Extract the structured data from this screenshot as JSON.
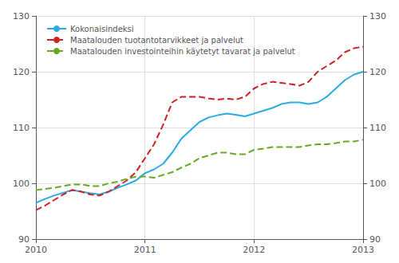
{
  "chart_data": {
    "type": "line",
    "categories": [
      "2010",
      null,
      null,
      null,
      null,
      null,
      null,
      null,
      null,
      null,
      null,
      null,
      "2011",
      null,
      null,
      null,
      null,
      null,
      null,
      null,
      null,
      null,
      null,
      null,
      "2012",
      null,
      null,
      null,
      null,
      null,
      null,
      null,
      null,
      null,
      null,
      null,
      "2013"
    ],
    "series": [
      {
        "name": "Kokonaisindeksi",
        "color": "#29abe2",
        "line_style": "solid",
        "values": [
          96.5,
          97.2,
          97.8,
          98.3,
          98.8,
          98.5,
          98.2,
          98.0,
          98.5,
          99.2,
          99.8,
          100.5,
          101.8,
          102.5,
          103.5,
          105.5,
          108.0,
          109.5,
          111.0,
          111.8,
          112.2,
          112.5,
          112.3,
          112.0,
          112.5,
          113.0,
          113.5,
          114.2,
          114.5,
          114.5,
          114.2,
          114.5,
          115.5,
          117.0,
          118.5,
          119.5,
          120.0
        ]
      },
      {
        "name": "Maatalouden tuotantotarvikkeet ja palvelut",
        "color": "#cc2222",
        "line_style": "dashed",
        "values": [
          95.2,
          96.0,
          97.0,
          98.0,
          98.8,
          98.5,
          98.0,
          97.8,
          98.5,
          99.5,
          100.5,
          102.0,
          104.5,
          107.0,
          110.5,
          114.5,
          115.5,
          115.5,
          115.5,
          115.2,
          115.0,
          115.2,
          115.0,
          115.5,
          117.0,
          117.8,
          118.2,
          118.0,
          117.8,
          117.5,
          118.2,
          120.0,
          121.0,
          122.0,
          123.5,
          124.2,
          124.5
        ]
      },
      {
        "name": "Maatalouden investointeihin käytetyt tavarat ja palvelut",
        "color": "#66aa22",
        "line_style": "dashed",
        "values": [
          98.8,
          99.0,
          99.2,
          99.5,
          99.8,
          99.8,
          99.5,
          99.5,
          100.0,
          100.3,
          100.8,
          101.2,
          101.2,
          101.0,
          101.5,
          102.0,
          102.8,
          103.5,
          104.5,
          105.0,
          105.5,
          105.5,
          105.2,
          105.2,
          106.0,
          106.2,
          106.5,
          106.5,
          106.5,
          106.5,
          106.8,
          107.0,
          107.0,
          107.2,
          107.5,
          107.5,
          107.8
        ]
      }
    ],
    "ylim": [
      90,
      130
    ],
    "yticks": [
      90,
      100,
      110,
      120,
      130
    ],
    "y2lim": [
      90,
      130
    ],
    "y2ticks": [
      90,
      100,
      110,
      120,
      130
    ],
    "grid": true,
    "legend": "upper left"
  }
}
